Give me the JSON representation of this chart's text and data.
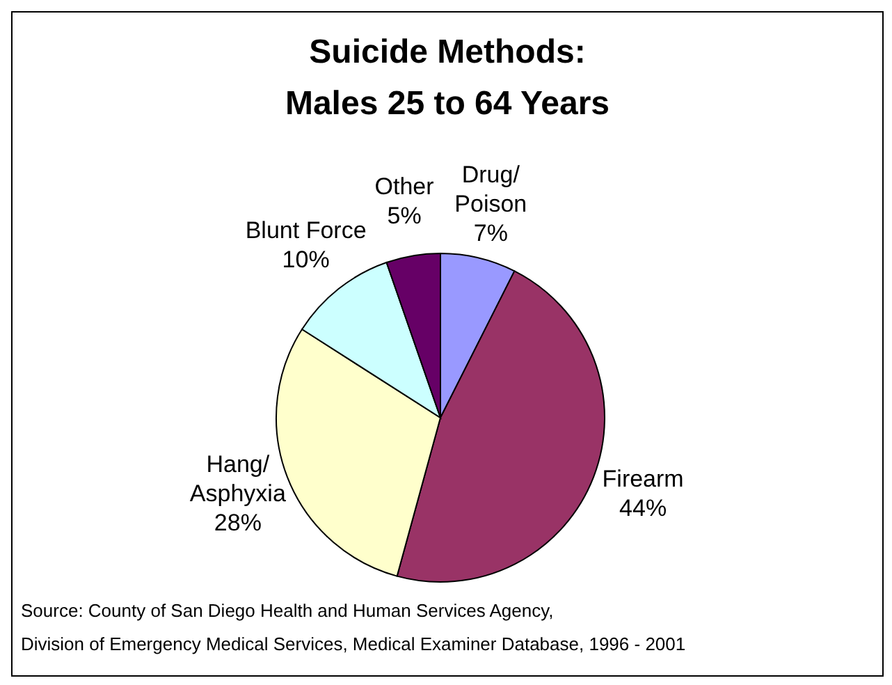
{
  "chart_data": {
    "type": "pie",
    "title": "Suicide Methods:\nMales 25 to 64 Years",
    "categories": [
      "Drug/Poison",
      "Firearm",
      "Hang/Asphyxia",
      "Blunt Force",
      "Other"
    ],
    "values": [
      7,
      44,
      28,
      10,
      5
    ],
    "value_labels": [
      "7%",
      "44%",
      "28%",
      "10%",
      "5%"
    ],
    "colors": [
      "#9999ff",
      "#993366",
      "#ffffcc",
      "#ccffff",
      "#660066"
    ],
    "legend": false,
    "annotations": [
      "Source: County of San Diego Health and Human Services Agency,\nDivision of Emergency Medical Services, Medical Examiner Database, 1996 - 2001"
    ]
  }
}
